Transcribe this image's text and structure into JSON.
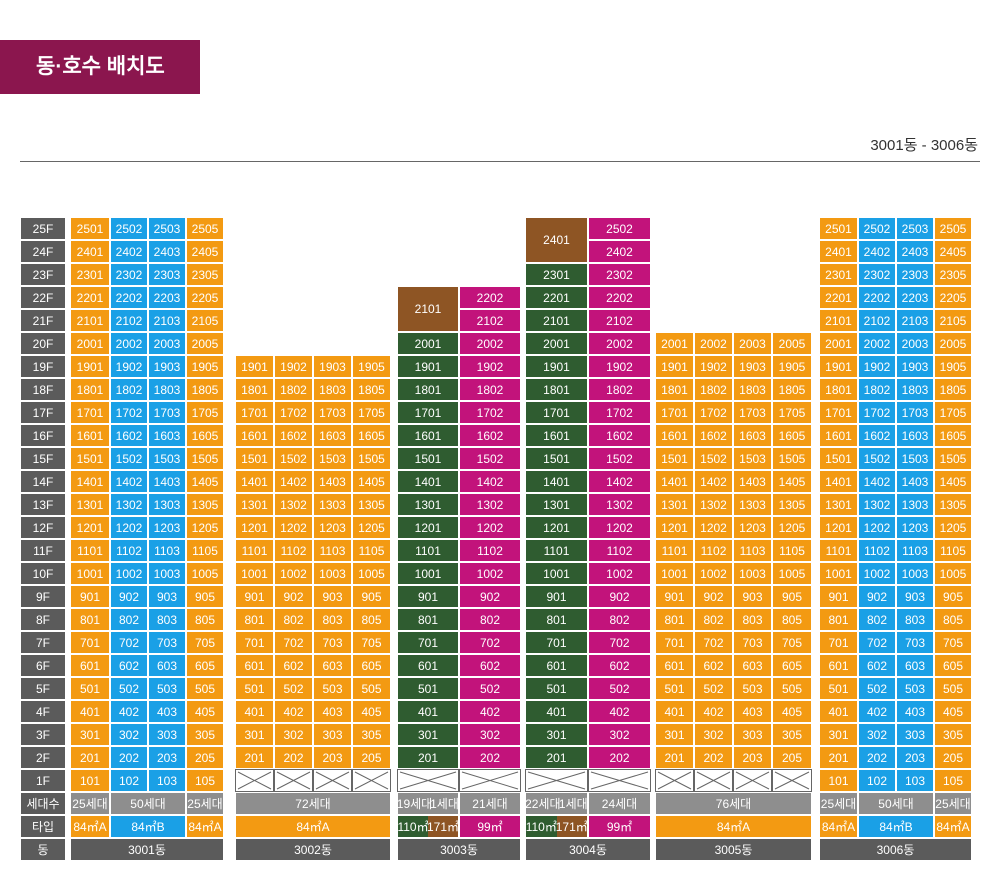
{
  "header": {
    "title": "동·호수 배치도",
    "range": "3001동 - 3006동"
  },
  "colors": {
    "orange": "#f39a12",
    "blue": "#1aa0e6",
    "green": "#2f5c30",
    "magenta": "#c2137b",
    "brown": "#8e5524",
    "gray": "#5b5b5b",
    "title": "#8b164e"
  },
  "floors": [
    "25F",
    "24F",
    "23F",
    "22F",
    "21F",
    "20F",
    "19F",
    "18F",
    "17F",
    "16F",
    "15F",
    "14F",
    "13F",
    "12F",
    "11F",
    "10F",
    "9F",
    "8F",
    "7F",
    "6F",
    "5F",
    "4F",
    "3F",
    "2F",
    "1F"
  ],
  "row_labels": {
    "units": "세대수",
    "type": "타입",
    "building": "동"
  },
  "buildings": [
    {
      "name": "3001동",
      "top_floor": 25,
      "first_floor": 1,
      "units": [
        "01",
        "02",
        "03",
        "05"
      ],
      "summary": [
        "25세대",
        "50세대",
        "25세대"
      ],
      "types": [
        "84㎡A",
        "84㎡B",
        "84㎡A"
      ]
    },
    {
      "name": "3002동",
      "top_floor": 19,
      "first_floor": 2,
      "units": [
        "01",
        "02",
        "03",
        "05"
      ],
      "summary": [
        "72세대"
      ],
      "types": [
        "84㎡A"
      ]
    },
    {
      "name": "3003동",
      "top_floor": 22,
      "first_floor": 2,
      "units": [
        "01",
        "02"
      ],
      "merged_top": {
        "label": "2101",
        "floors": [
          21,
          22
        ]
      },
      "summary": [
        "19세대",
        "1세대",
        "21세대"
      ],
      "types": [
        "110㎡",
        "171㎡",
        "99㎡"
      ]
    },
    {
      "name": "3004동",
      "top_floor": 25,
      "first_floor": 2,
      "units": [
        "01",
        "02"
      ],
      "merged_top": {
        "label": "2401",
        "floors": [
          24,
          25
        ]
      },
      "summary": [
        "22세대",
        "1세대",
        "24세대"
      ],
      "types": [
        "110㎡",
        "171㎡",
        "99㎡"
      ]
    },
    {
      "name": "3005동",
      "top_floor": 20,
      "first_floor": 2,
      "units": [
        "01",
        "02",
        "03",
        "05"
      ],
      "summary": [
        "76세대"
      ],
      "types": [
        "84㎡A"
      ]
    },
    {
      "name": "3006동",
      "top_floor": 25,
      "first_floor": 1,
      "units": [
        "01",
        "02",
        "03",
        "05"
      ],
      "summary": [
        "25세대",
        "50세대",
        "25세대"
      ],
      "types": [
        "84㎡A",
        "84㎡B",
        "84㎡A"
      ]
    }
  ]
}
